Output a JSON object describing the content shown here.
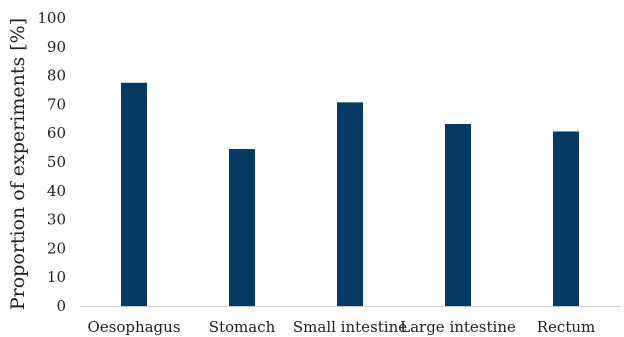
{
  "chart_data": {
    "type": "bar",
    "title": "",
    "xlabel": "",
    "ylabel": "Proportion of experiments [%]",
    "categories": [
      "Oesophagus",
      "Stomach",
      "Small intestine",
      "Large intestine",
      "Rectum"
    ],
    "values": [
      77.5,
      54.5,
      70.7,
      63.2,
      60.6
    ],
    "ylim": [
      0,
      100
    ],
    "yticks": [
      0,
      10,
      20,
      30,
      40,
      50,
      60,
      70,
      80,
      90,
      100
    ],
    "grid": false,
    "bar_color": "#063a64",
    "axis_color": "#c8c8c8"
  }
}
